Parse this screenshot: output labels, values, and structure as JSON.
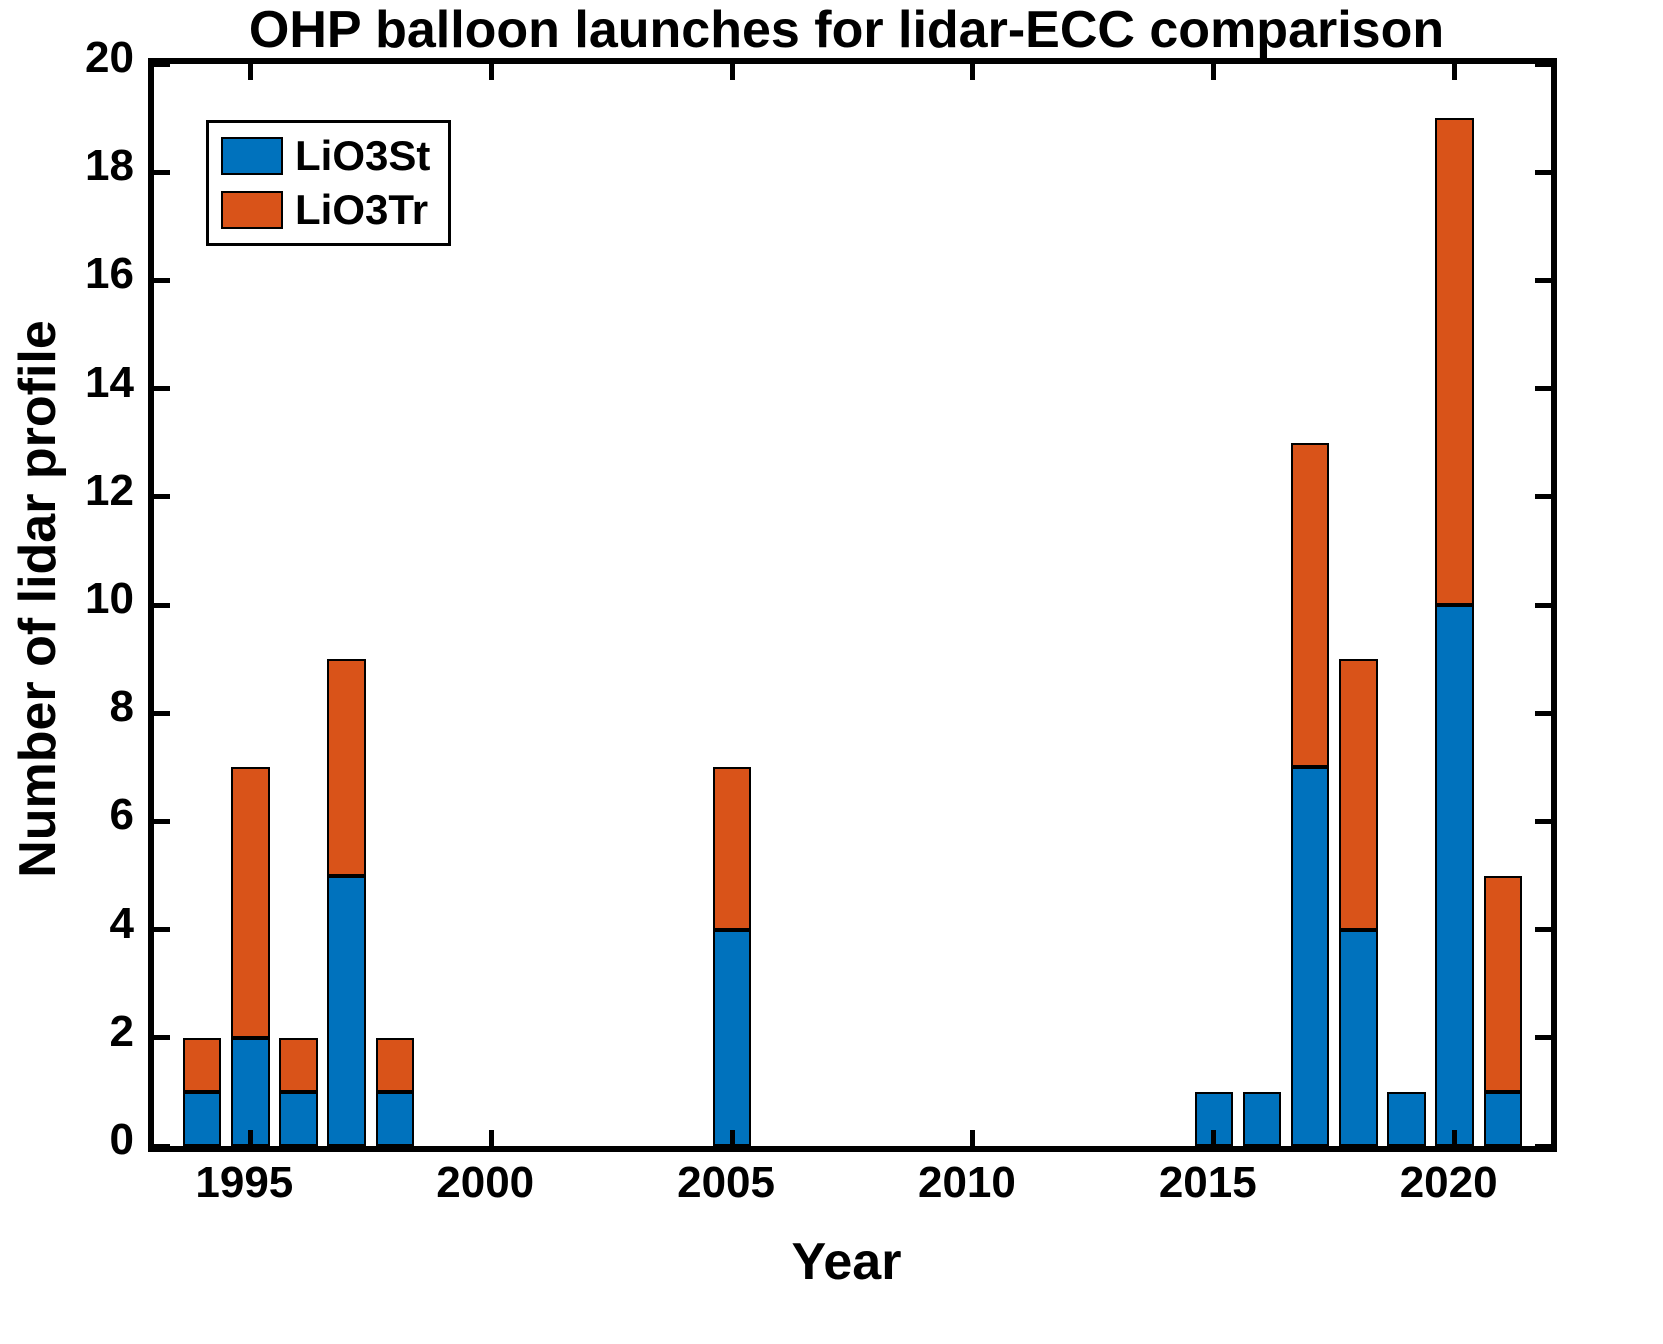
{
  "figure": {
    "title": "OHP balloon launches for lidar-ECC comparison",
    "xlabel": "Year",
    "ylabel": "Number of lidar profile"
  },
  "chart_data": {
    "type": "bar",
    "stacked": true,
    "title": "OHP balloon launches for lidar-ECC comparison",
    "xlabel": "Year",
    "ylabel": "Number of lidar profile",
    "categories": [
      1994,
      1995,
      1996,
      1997,
      1998,
      2005,
      2015,
      2016,
      2017,
      2018,
      2019,
      2020,
      2021
    ],
    "series": [
      {
        "name": "LiO3St",
        "color": "#0072BD",
        "values": [
          1,
          2,
          1,
          5,
          1,
          4,
          1,
          1,
          7,
          4,
          1,
          10,
          1
        ]
      },
      {
        "name": "LiO3Tr",
        "color": "#D95319",
        "values": [
          1,
          5,
          1,
          4,
          1,
          3,
          0,
          0,
          6,
          5,
          0,
          9,
          4
        ]
      }
    ],
    "totals": [
      2,
      7,
      2,
      9,
      2,
      7,
      1,
      1,
      13,
      9,
      1,
      19,
      5
    ],
    "xlim": [
      1993,
      2022
    ],
    "ylim": [
      0,
      20
    ],
    "xticks": [
      1995,
      2000,
      2005,
      2010,
      2015,
      2020
    ],
    "yticks": [
      0,
      2,
      4,
      6,
      8,
      10,
      12,
      14,
      16,
      18,
      20
    ],
    "legend_position": "top-left",
    "grid": false,
    "bar_edge_color": "#000000",
    "axis_color": "#000000"
  }
}
